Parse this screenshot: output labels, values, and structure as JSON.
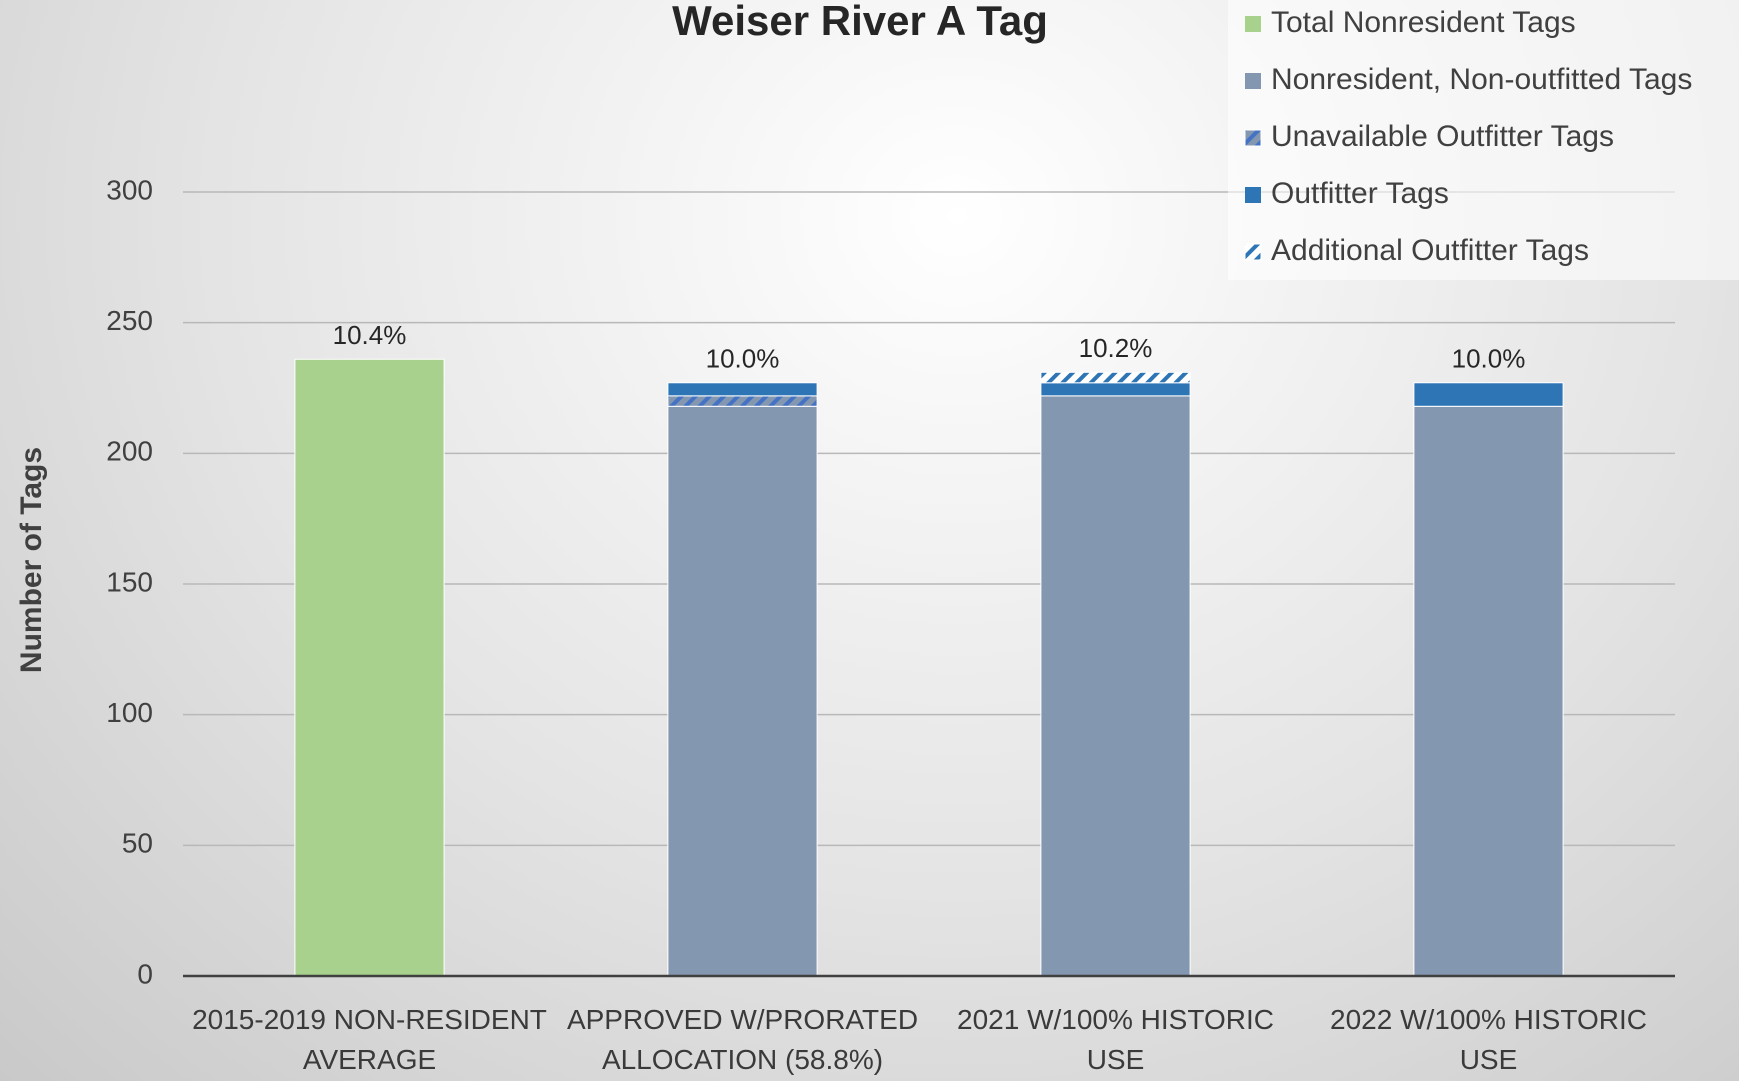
{
  "chart_data": {
    "type": "stacked_bar",
    "title": "Weiser River A Tag",
    "y_label": "Number of Tags",
    "categories": [
      "2015-2019 NON-RESIDENT AVERAGE",
      "APPROVED W/PRORATED ALLOCATION (58.8%)",
      "2021 W/100% HISTORIC USE",
      "2022 W/100% HISTORIC USE"
    ],
    "series": [
      {
        "name": "Total Nonresident Tags",
        "color": "#a9d18e",
        "values": [
          236,
          null,
          null,
          null
        ]
      },
      {
        "name": "Nonresident, Non-outfitted Tags",
        "color": "#8497b0",
        "values": [
          null,
          218,
          222,
          218
        ]
      },
      {
        "name": "Unavailable Outfitter Tags",
        "color": "#8497b0",
        "hatch_color": "#4472c4",
        "values": [
          null,
          4,
          null,
          null
        ]
      },
      {
        "name": "Outfitter Tags",
        "color": "#2e75b6",
        "values": [
          null,
          5,
          5,
          9
        ]
      },
      {
        "name": "Additional Outfitter Tags",
        "color": "#ffffff",
        "hatch_color": "#2e75b6",
        "values": [
          null,
          null,
          4,
          null
        ]
      }
    ],
    "bar_labels": [
      "10.4%",
      "10.0%",
      "10.2%",
      "10.0%"
    ],
    "ylim": [
      0,
      300
    ],
    "yticks": [
      0,
      50,
      100,
      150,
      200,
      250,
      300
    ],
    "grid": true,
    "legend": "top-right"
  }
}
